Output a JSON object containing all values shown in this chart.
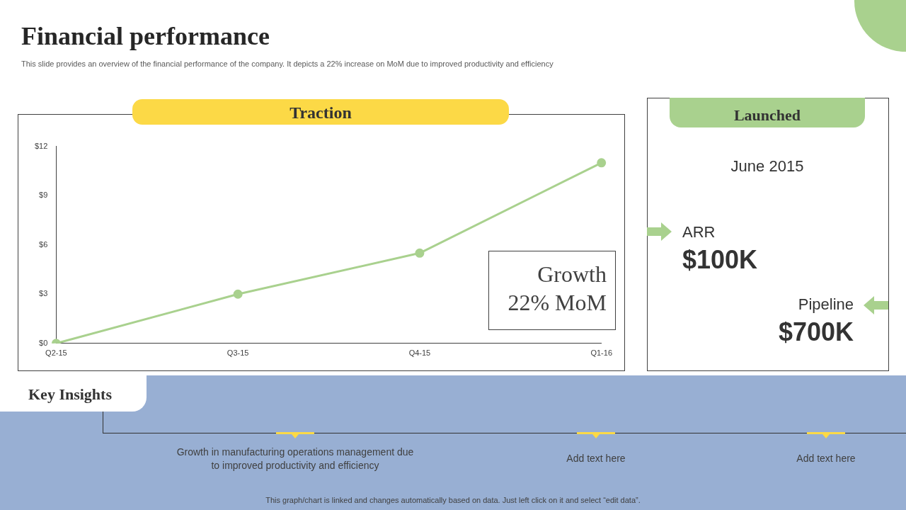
{
  "chart_data": [
    {
      "type": "other",
      "title": "Financial performance",
      "subtitle": "This slide provides an overview of the financial performance of the company. It depicts a 22% increase on MoM due to improved productivity and efficiency"
    },
    {
      "type": "line",
      "title": "Traction",
      "categories": [
        "Q2-15",
        "Q3-15",
        "Q4-15",
        "Q1-16"
      ],
      "series": [
        {
          "color": "#a9d18e",
          "values": [
            0,
            3,
            5.5,
            11
          ]
        }
      ],
      "ylim": [
        0,
        12
      ],
      "yticks": [
        {
          "value": 0,
          "label": "$0"
        },
        {
          "value": 3,
          "label": "$3"
        },
        {
          "value": 6,
          "label": "$6"
        },
        {
          "value": 9,
          "label": "$9"
        },
        {
          "value": 12,
          "label": "$12"
        }
      ],
      "marker": "circle",
      "annotations": [
        "Growth 22% MoM"
      ]
    },
    {
      "type": "other",
      "title": "Launched",
      "annotations": [
        "June 2015",
        "ARR",
        "$100K",
        "Pipeline",
        "$700K"
      ]
    },
    {
      "type": "other",
      "title": "Key Insights",
      "annotations": [
        "Growth in manufacturing operations management due to improved productivity and efficiency",
        "Add text here",
        "Add text here",
        "This graph/chart is linked and changes automatically based on data. Just left click on it and select “edit data”."
      ]
    }
  ]
}
